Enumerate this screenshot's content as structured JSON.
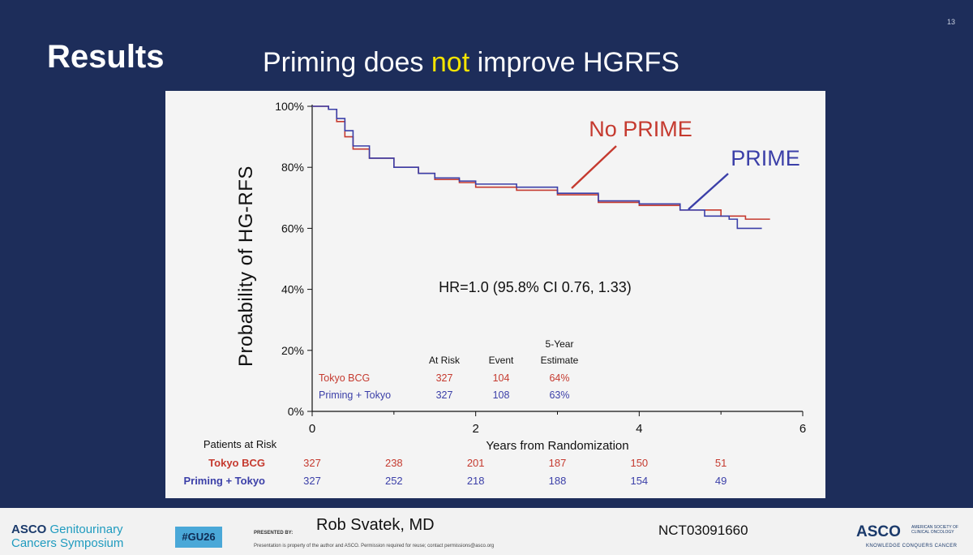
{
  "slide": {
    "number": "13",
    "section": "Results",
    "subtitle_pre": "Priming does ",
    "subtitle_highlight": "not",
    "subtitle_post": " improve HGRFS"
  },
  "colors": {
    "no_prime": "#c53a2f",
    "prime": "#3b3fa8",
    "highlight": "#f5e400",
    "background": "#1d2d5a"
  },
  "chart_data": {
    "type": "line",
    "title": "Priming does not improve HGRFS",
    "xlabel": "Years from Randomization",
    "ylabel": "Probability of HG-RFS",
    "xlim": [
      0,
      6
    ],
    "ylim": [
      0,
      100
    ],
    "x_ticks": [
      "0",
      "2",
      "4",
      "6"
    ],
    "y_ticks": [
      "0%",
      "20%",
      "40%",
      "60%",
      "80%",
      "100%"
    ],
    "series": [
      {
        "name": "No PRIME",
        "color": "#c53a2f",
        "x": [
          0,
          0.2,
          0.3,
          0.4,
          0.5,
          0.7,
          1.0,
          1.3,
          1.5,
          1.8,
          2.0,
          2.5,
          3.0,
          3.5,
          4.0,
          4.5,
          5.0,
          5.3,
          5.6
        ],
        "y": [
          100,
          99,
          95,
          90,
          86,
          83,
          80,
          78,
          76,
          75,
          73.5,
          72.5,
          71,
          68.5,
          67.5,
          66,
          64,
          63,
          63
        ]
      },
      {
        "name": "PRIME",
        "color": "#3b3fa8",
        "x": [
          0,
          0.2,
          0.3,
          0.4,
          0.5,
          0.7,
          1.0,
          1.3,
          1.5,
          1.8,
          2.0,
          2.5,
          3.0,
          3.5,
          4.0,
          4.5,
          4.8,
          5.1,
          5.2,
          5.5
        ],
        "y": [
          100,
          99,
          96,
          92,
          87,
          83,
          80,
          78,
          76.5,
          75.5,
          74.5,
          73.5,
          71.5,
          69,
          68,
          66,
          64,
          63,
          60,
          60
        ]
      }
    ],
    "annotations": {
      "no_prime": "No PRIME",
      "prime": "PRIME",
      "hr": "HR=1.0 (95.8% CI 0.76, 1.33)"
    },
    "inset_table": {
      "headers": [
        "At Risk",
        "Event",
        "5-Year",
        "Estimate"
      ],
      "rows": [
        {
          "label": "Tokyo BCG",
          "at_risk": "327",
          "event": "104",
          "estimate": "64%"
        },
        {
          "label": "Priming + Tokyo",
          "at_risk": "327",
          "event": "108",
          "estimate": "63%"
        }
      ]
    },
    "risk_table": {
      "title": "Patients at Risk",
      "rows": [
        {
          "label": "Tokyo BCG",
          "values": [
            "327",
            "238",
            "201",
            "187",
            "150",
            "51"
          ]
        },
        {
          "label": "Priming + Tokyo",
          "values": [
            "327",
            "252",
            "218",
            "188",
            "154",
            "49"
          ]
        }
      ]
    }
  },
  "footer": {
    "asco_left_1": "ASCO",
    "asco_left_2": "Genitourinary",
    "asco_left_3": "Cancers Symposium",
    "hashtag": "#GU26",
    "presented_by": "PRESENTED BY:",
    "presenter": "Rob Svatek, MD",
    "disclaimer": "Presentation is property of the author and ASCO. Permission required for reuse; contact permissions@asco.org",
    "nct": "NCT03091660",
    "asco_right": "ASCO",
    "asco_right_small": "AMERICAN SOCIETY OF CLINICAL ONCOLOGY",
    "asco_right_tag": "KNOWLEDGE CONQUERS CANCER"
  }
}
